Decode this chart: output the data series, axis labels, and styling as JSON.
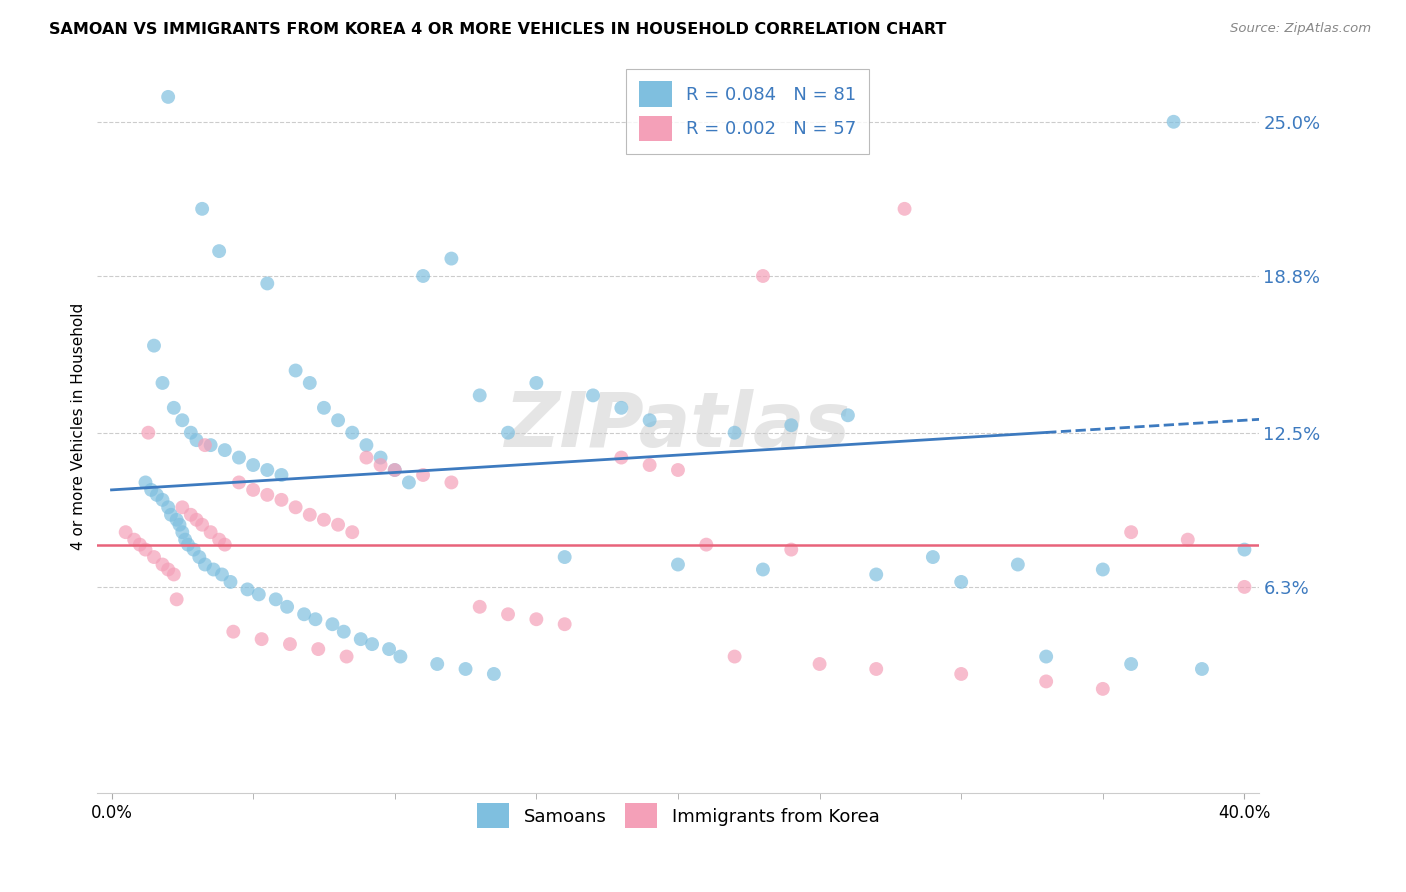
{
  "title": "SAMOAN VS IMMIGRANTS FROM KOREA 4 OR MORE VEHICLES IN HOUSEHOLD CORRELATION CHART",
  "source": "Source: ZipAtlas.com",
  "ylabel": "4 or more Vehicles in Household",
  "ytick_values": [
    6.3,
    12.5,
    18.8,
    25.0
  ],
  "ytick_labels": [
    "6.3%",
    "12.5%",
    "18.8%",
    "25.0%"
  ],
  "xlim": [
    0.0,
    40.0
  ],
  "ylim": [
    -2.0,
    27.5
  ],
  "legend_label_blue": "R = 0.084   N = 81",
  "legend_label_pink": "R = 0.002   N = 57",
  "legend_label_samoans": "Samoans",
  "legend_label_korea": "Immigrants from Korea",
  "color_blue": "#7fbfdf",
  "color_pink": "#f4a0b8",
  "color_line_blue": "#3d7abf",
  "color_line_pink": "#e8637a",
  "watermark": "ZIPatlas",
  "blue_line_x0": 0.0,
  "blue_line_x1": 40.0,
  "blue_line_y0": 10.2,
  "blue_line_y1": 13.0,
  "blue_line_dash_x0": 40.0,
  "blue_line_dash_x1": 40.0,
  "pink_line_y": 8.0,
  "blue_scatter_x": [
    2.0,
    3.2,
    3.8,
    1.5,
    1.8,
    2.2,
    2.5,
    2.8,
    3.0,
    3.5,
    4.0,
    4.5,
    5.0,
    5.5,
    6.0,
    6.5,
    7.0,
    7.5,
    8.0,
    8.5,
    9.0,
    9.5,
    10.0,
    10.5,
    11.0,
    12.0,
    13.0,
    14.0,
    15.0,
    17.0,
    18.0,
    19.0,
    22.0,
    24.0,
    26.0,
    29.0,
    32.0,
    35.0,
    37.5,
    1.2,
    1.4,
    1.6,
    1.8,
    2.0,
    2.1,
    2.3,
    2.4,
    2.5,
    2.6,
    2.7,
    2.9,
    3.1,
    3.3,
    3.6,
    3.9,
    4.2,
    4.8,
    5.2,
    5.8,
    6.2,
    6.8,
    7.2,
    7.8,
    8.2,
    8.8,
    9.2,
    9.8,
    10.2,
    11.5,
    12.5,
    13.5,
    16.0,
    20.0,
    23.0,
    27.0,
    30.0,
    33.0,
    36.0,
    38.5,
    40.0,
    5.5
  ],
  "blue_scatter_y": [
    26.0,
    21.5,
    19.8,
    16.0,
    14.5,
    13.5,
    13.0,
    12.5,
    12.2,
    12.0,
    11.8,
    11.5,
    11.2,
    11.0,
    10.8,
    15.0,
    14.5,
    13.5,
    13.0,
    12.5,
    12.0,
    11.5,
    11.0,
    10.5,
    18.8,
    19.5,
    14.0,
    12.5,
    14.5,
    14.0,
    13.5,
    13.0,
    12.5,
    12.8,
    13.2,
    7.5,
    7.2,
    7.0,
    25.0,
    10.5,
    10.2,
    10.0,
    9.8,
    9.5,
    9.2,
    9.0,
    8.8,
    8.5,
    8.2,
    8.0,
    7.8,
    7.5,
    7.2,
    7.0,
    6.8,
    6.5,
    6.2,
    6.0,
    5.8,
    5.5,
    5.2,
    5.0,
    4.8,
    4.5,
    4.2,
    4.0,
    3.8,
    3.5,
    3.2,
    3.0,
    2.8,
    7.5,
    7.2,
    7.0,
    6.8,
    6.5,
    3.5,
    3.2,
    3.0,
    7.8,
    18.5
  ],
  "pink_scatter_x": [
    0.5,
    0.8,
    1.0,
    1.2,
    1.5,
    1.8,
    2.0,
    2.2,
    2.5,
    2.8,
    3.0,
    3.2,
    3.5,
    3.8,
    4.0,
    4.5,
    5.0,
    5.5,
    6.0,
    6.5,
    7.0,
    7.5,
    8.0,
    8.5,
    9.0,
    9.5,
    10.0,
    11.0,
    12.0,
    13.0,
    14.0,
    15.0,
    16.0,
    18.0,
    19.0,
    20.0,
    22.0,
    23.0,
    25.0,
    27.0,
    28.0,
    30.0,
    33.0,
    35.0,
    36.0,
    38.0,
    40.0,
    1.3,
    2.3,
    3.3,
    4.3,
    5.3,
    6.3,
    7.3,
    8.3,
    21.0,
    24.0
  ],
  "pink_scatter_y": [
    8.5,
    8.2,
    8.0,
    7.8,
    7.5,
    7.2,
    7.0,
    6.8,
    9.5,
    9.2,
    9.0,
    8.8,
    8.5,
    8.2,
    8.0,
    10.5,
    10.2,
    10.0,
    9.8,
    9.5,
    9.2,
    9.0,
    8.8,
    8.5,
    11.5,
    11.2,
    11.0,
    10.8,
    10.5,
    5.5,
    5.2,
    5.0,
    4.8,
    11.5,
    11.2,
    11.0,
    3.5,
    18.8,
    3.2,
    3.0,
    21.5,
    2.8,
    2.5,
    2.2,
    8.5,
    8.2,
    6.3,
    12.5,
    5.8,
    12.0,
    4.5,
    4.2,
    4.0,
    3.8,
    3.5,
    8.0,
    7.8
  ]
}
